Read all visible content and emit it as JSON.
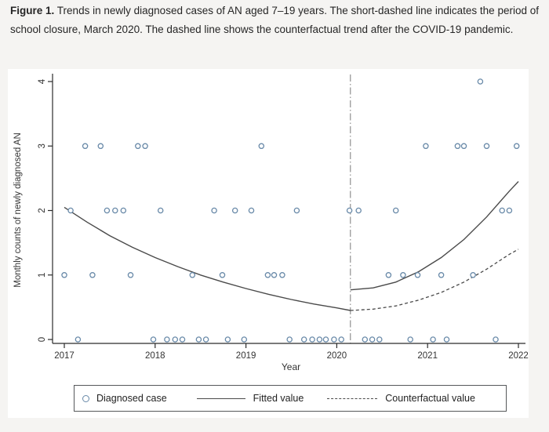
{
  "figure": {
    "caption_label": "Figure 1.",
    "caption_text": " Trends in newly diagnosed cases of AN aged 7–19 years. The short-dashed line indicates the period of school closure, March 2020. The dashed line shows the counterfactual trend after the COVID-19 pandemic."
  },
  "chart_data": {
    "type": "scatter",
    "title": "",
    "xlabel": "Year",
    "ylabel": "Monthly counts of newly diagnosed AN",
    "xlim": [
      2016.95,
      2022.1
    ],
    "ylim": [
      0,
      4
    ],
    "x_ticks": [
      2017,
      2018,
      2019,
      2020,
      2021,
      2022
    ],
    "y_ticks": [
      0,
      1,
      2,
      3,
      4
    ],
    "grid": "off",
    "legend_position": "bottom",
    "vline": {
      "x": 2020.15,
      "style": "dash-dot",
      "meaning": "school closure, March 2020"
    },
    "series": [
      {
        "name": "Diagnosed case",
        "kind": "scatter",
        "points": [
          [
            2017.0,
            1
          ],
          [
            2017.07,
            2
          ],
          [
            2017.15,
            0
          ],
          [
            2017.23,
            3
          ],
          [
            2017.31,
            1
          ],
          [
            2017.4,
            3
          ],
          [
            2017.47,
            2
          ],
          [
            2017.56,
            2
          ],
          [
            2017.65,
            2
          ],
          [
            2017.73,
            1
          ],
          [
            2017.81,
            3
          ],
          [
            2017.89,
            3
          ],
          [
            2017.98,
            0
          ],
          [
            2018.06,
            2
          ],
          [
            2018.13,
            0
          ],
          [
            2018.22,
            0
          ],
          [
            2018.3,
            0
          ],
          [
            2018.41,
            1
          ],
          [
            2018.48,
            0
          ],
          [
            2018.56,
            0
          ],
          [
            2018.65,
            2
          ],
          [
            2018.74,
            1
          ],
          [
            2018.8,
            0
          ],
          [
            2018.88,
            2
          ],
          [
            2018.98,
            0
          ],
          [
            2019.06,
            2
          ],
          [
            2019.17,
            3
          ],
          [
            2019.24,
            1
          ],
          [
            2019.31,
            1
          ],
          [
            2019.4,
            1
          ],
          [
            2019.48,
            0
          ],
          [
            2019.56,
            2
          ],
          [
            2019.64,
            0
          ],
          [
            2019.73,
            0
          ],
          [
            2019.81,
            0
          ],
          [
            2019.88,
            0
          ],
          [
            2019.97,
            0
          ],
          [
            2020.05,
            0
          ],
          [
            2020.14,
            2
          ],
          [
            2020.24,
            2
          ],
          [
            2020.31,
            0
          ],
          [
            2020.39,
            0
          ],
          [
            2020.47,
            0
          ],
          [
            2020.57,
            1
          ],
          [
            2020.65,
            2
          ],
          [
            2020.73,
            1
          ],
          [
            2020.81,
            0
          ],
          [
            2020.89,
            1
          ],
          [
            2020.98,
            3
          ],
          [
            2021.06,
            0
          ],
          [
            2021.15,
            1
          ],
          [
            2021.21,
            0
          ],
          [
            2021.33,
            3
          ],
          [
            2021.4,
            3
          ],
          [
            2021.5,
            1
          ],
          [
            2021.58,
            4
          ],
          [
            2021.65,
            3
          ],
          [
            2021.75,
            0
          ],
          [
            2021.82,
            2
          ],
          [
            2021.9,
            2
          ],
          [
            2021.98,
            3
          ]
        ]
      },
      {
        "name": "Fitted value",
        "kind": "line",
        "segments": [
          [
            [
              2017.0,
              2.05
            ],
            [
              2017.25,
              1.82
            ],
            [
              2017.5,
              1.61
            ],
            [
              2017.75,
              1.43
            ],
            [
              2018.0,
              1.27
            ],
            [
              2018.25,
              1.13
            ],
            [
              2018.5,
              1.0
            ],
            [
              2018.75,
              0.89
            ],
            [
              2019.0,
              0.79
            ],
            [
              2019.25,
              0.7
            ],
            [
              2019.5,
              0.62
            ],
            [
              2019.75,
              0.55
            ],
            [
              2020.0,
              0.49
            ],
            [
              2020.15,
              0.45
            ]
          ],
          [
            [
              2020.15,
              0.77
            ],
            [
              2020.4,
              0.8
            ],
            [
              2020.65,
              0.89
            ],
            [
              2020.9,
              1.05
            ],
            [
              2021.15,
              1.27
            ],
            [
              2021.4,
              1.55
            ],
            [
              2021.65,
              1.9
            ],
            [
              2021.9,
              2.3
            ],
            [
              2022.0,
              2.45
            ]
          ]
        ]
      },
      {
        "name": "Counterfactual value",
        "kind": "dashed-line",
        "segments": [
          [
            [
              2020.15,
              0.45
            ],
            [
              2020.4,
              0.47
            ],
            [
              2020.65,
              0.52
            ],
            [
              2020.9,
              0.61
            ],
            [
              2021.15,
              0.73
            ],
            [
              2021.4,
              0.89
            ],
            [
              2021.65,
              1.09
            ],
            [
              2021.9,
              1.32
            ],
            [
              2022.0,
              1.4
            ]
          ]
        ]
      }
    ]
  },
  "legend": {
    "items": [
      {
        "label": "Diagnosed case",
        "marker": "circle-marker"
      },
      {
        "label": "Fitted value",
        "marker": "solid-line-marker"
      },
      {
        "label": "Counterfactual value",
        "marker": "dashed-line-marker"
      }
    ]
  },
  "style": {
    "marker_color": "#6889a8",
    "line_color": "#4a4a4a",
    "vline_color": "#8f8f8f",
    "axis_color": "#2b2b2b",
    "tick_label_color": "#333333",
    "panel_bg": "#ffffff",
    "page_bg": "#f5f4f2"
  }
}
